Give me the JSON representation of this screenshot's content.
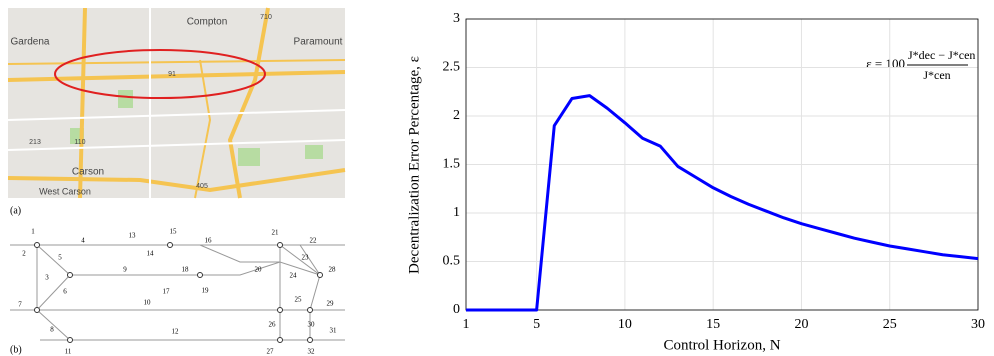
{
  "map": {
    "panel_label": "(a)",
    "labels": [
      "Compton",
      "Gardena",
      "Paramount",
      "91",
      "710",
      "213",
      "110",
      "Carson",
      "West Carson",
      "405"
    ]
  },
  "network": {
    "panel_label": "(b)",
    "labels": [
      "1",
      "2",
      "3",
      "4",
      "5",
      "6",
      "7",
      "8",
      "9",
      "10",
      "11",
      "12",
      "13",
      "14",
      "15",
      "16",
      "17",
      "18",
      "19",
      "20",
      "21",
      "22",
      "23",
      "24",
      "25",
      "26",
      "27",
      "28",
      "29",
      "30",
      "31",
      "32"
    ]
  },
  "chart_data": {
    "type": "line",
    "x": [
      1,
      2,
      3,
      4,
      5,
      6,
      7,
      8,
      9,
      10,
      11,
      12,
      13,
      14,
      15,
      16,
      17,
      18,
      19,
      20,
      21,
      22,
      23,
      24,
      25,
      26,
      27,
      28,
      29,
      30
    ],
    "values": [
      0,
      0,
      0,
      0,
      0,
      1.9,
      2.18,
      2.21,
      2.08,
      1.93,
      1.77,
      1.69,
      1.48,
      1.37,
      1.26,
      1.17,
      1.09,
      1.02,
      0.95,
      0.89,
      0.84,
      0.79,
      0.74,
      0.7,
      0.66,
      0.63,
      0.6,
      0.57,
      0.55,
      0.53
    ],
    "color": "#0000ff",
    "xlabel": "Control Horizon, N",
    "ylabel": "Decentralization Error Percentage, ε",
    "annotation": {
      "lhs": "ε = 100",
      "numerator": "J*dec − J*cen",
      "denominator": "J*cen"
    },
    "xlim": [
      1,
      30
    ],
    "xticks": [
      1,
      5,
      10,
      15,
      20,
      25,
      30
    ],
    "ylim": [
      0,
      3
    ],
    "yticks": [
      0,
      0.5,
      1,
      1.5,
      2,
      2.5,
      3
    ],
    "grid": true
  }
}
